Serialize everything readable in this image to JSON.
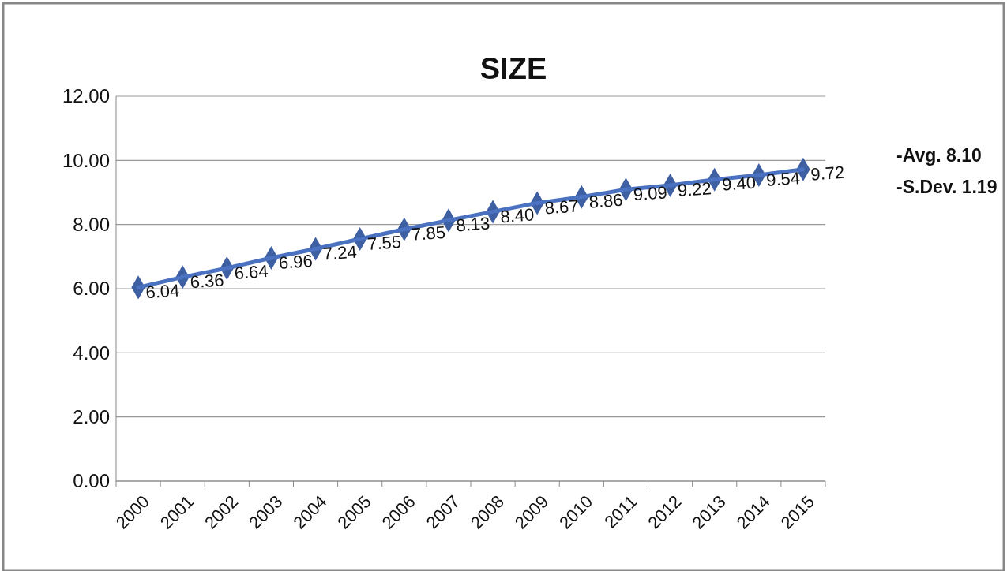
{
  "chart_data": {
    "type": "line",
    "title": "SIZE",
    "categories": [
      "2000",
      "2001",
      "2002",
      "2003",
      "2004",
      "2005",
      "2006",
      "2007",
      "2008",
      "2009",
      "2010",
      "2011",
      "2012",
      "2013",
      "2014",
      "2015"
    ],
    "series": [
      {
        "color": "#4a72c0",
        "values": [
          6.04,
          6.36,
          6.64,
          6.96,
          7.24,
          7.55,
          7.85,
          8.13,
          8.4,
          8.67,
          8.86,
          9.09,
          9.22,
          9.4,
          9.54,
          9.72
        ],
        "value_labels": [
          "6.04",
          "6.36",
          "6.64",
          "6.96",
          "7.24",
          "7.55",
          "7.85",
          "8.13",
          "8.40",
          "8.67",
          "8.86",
          "9.09",
          "9.22",
          "9.40",
          "9.54",
          "9.72"
        ]
      }
    ],
    "ylim": [
      0,
      12
    ],
    "yticks": [
      {
        "value": 0,
        "label": "0.00"
      },
      {
        "value": 2,
        "label": "2.00"
      },
      {
        "value": 4,
        "label": "4.00"
      },
      {
        "value": 6,
        "label": "6.00"
      },
      {
        "value": 8,
        "label": "8.00"
      },
      {
        "value": 10,
        "label": "10.00"
      },
      {
        "value": 12,
        "label": "12.00"
      }
    ],
    "grid": "y",
    "marker": "diamond",
    "line_style": "solid",
    "annotations": [
      "-Avg. 8.10",
      "-S.Dev. 1.19"
    ]
  }
}
